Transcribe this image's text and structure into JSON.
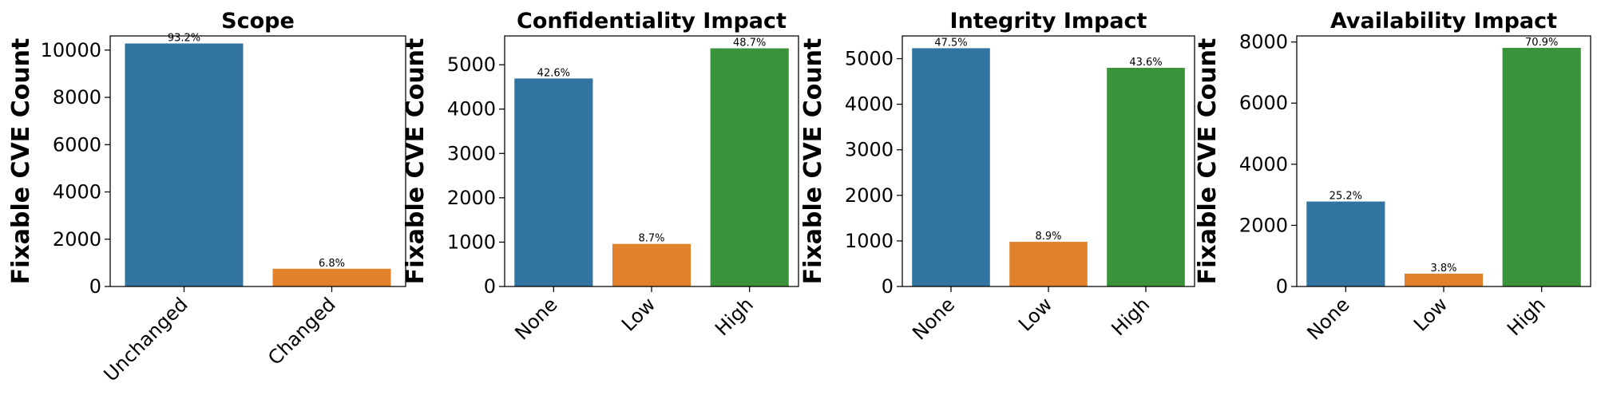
{
  "chart_data": [
    {
      "type": "bar",
      "title": "Scope",
      "ylabel": "Fixable CVE Count",
      "categories": [
        "Unchanged",
        "Changed"
      ],
      "values": [
        10280,
        750
      ],
      "data_labels": [
        "93.2%",
        "6.8%"
      ],
      "colors": [
        "#3274a1",
        "#e1812c"
      ],
      "ylim": [
        0,
        10600
      ],
      "yticks": [
        0,
        2000,
        4000,
        6000,
        8000,
        10000
      ],
      "grid": false,
      "legend": "none"
    },
    {
      "type": "bar",
      "title": "Confidentiality Impact",
      "ylabel": "Fixable CVE Count",
      "categories": [
        "None",
        "Low",
        "High"
      ],
      "values": [
        4690,
        960,
        5370
      ],
      "data_labels": [
        "42.6%",
        "8.7%",
        "48.7%"
      ],
      "colors": [
        "#3274a1",
        "#e1812c",
        "#3a923a"
      ],
      "ylim": [
        0,
        5650
      ],
      "yticks": [
        0,
        1000,
        2000,
        3000,
        4000,
        5000
      ],
      "grid": false,
      "legend": "none"
    },
    {
      "type": "bar",
      "title": "Integrity Impact",
      "ylabel": "Fixable CVE Count",
      "categories": [
        "None",
        "Low",
        "High"
      ],
      "values": [
        5230,
        980,
        4800
      ],
      "data_labels": [
        "47.5%",
        "8.9%",
        "43.6%"
      ],
      "colors": [
        "#3274a1",
        "#e1812c",
        "#3a923a"
      ],
      "ylim": [
        0,
        5500
      ],
      "yticks": [
        0,
        1000,
        2000,
        3000,
        4000,
        5000
      ],
      "grid": false,
      "legend": "none"
    },
    {
      "type": "bar",
      "title": "Availability Impact",
      "ylabel": "Fixable CVE Count",
      "categories": [
        "None",
        "Low",
        "High"
      ],
      "values": [
        2780,
        420,
        7810
      ],
      "data_labels": [
        "25.2%",
        "3.8%",
        "70.9%"
      ],
      "colors": [
        "#3274a1",
        "#e1812c",
        "#3a923a"
      ],
      "ylim": [
        0,
        8200
      ],
      "yticks": [
        0,
        2000,
        4000,
        6000,
        8000
      ],
      "grid": false,
      "legend": "none"
    }
  ]
}
